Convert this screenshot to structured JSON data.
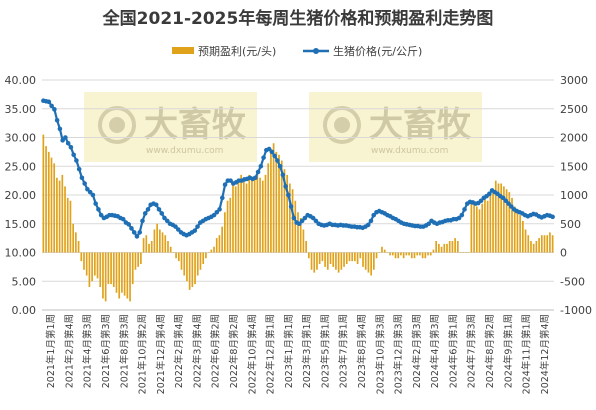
{
  "chart_data": {
    "type": "bar+line",
    "title": "全国2021-2025年每周生猪价格和预期盈利走势图",
    "legend_position": "top",
    "watermark": {
      "text": "大畜牧",
      "sub": "www.dxumu.com"
    },
    "y_left": {
      "min": 0,
      "max": 40,
      "step": 5,
      "tick_labels": [
        "0.00",
        "5.00",
        "10.00",
        "15.00",
        "20.00",
        "25.00",
        "30.00",
        "35.00",
        "40.00"
      ]
    },
    "y_right": {
      "min": -1000,
      "max": 3000,
      "step": 500,
      "tick_labels": [
        "-1000",
        "-500",
        "0",
        "500",
        "1000",
        "1500",
        "2000",
        "2500",
        "3000"
      ]
    },
    "x_tick_labels": [
      "2021年1月第1周",
      "2021年2月第4周",
      "2021年4月第3周",
      "2021年6月第3周",
      "2021年8月第3周",
      "2021年10月第2周",
      "2021年12月第4周",
      "2022年2月第4周",
      "2022年3月第4周",
      "2022年6月第2周",
      "2022年8月第2周",
      "2022年10月第4周",
      "2022年12月第1周",
      "2023年1月第1周",
      "2023年3月第1周",
      "2023年5月第1周",
      "2023年7月第1周",
      "2023年8月第4周",
      "2023年10月第3周",
      "2023年12月第3周",
      "2024年2月第3周",
      "2024年4月第3周",
      "2024年6月第1周",
      "2024年7月第3周",
      "2024年8月第2周",
      "2024年9月第1周",
      "2024年11月第1周",
      "2024年12月第4周"
    ],
    "series": [
      {
        "name": "预期盈利(元/头)",
        "type": "bar",
        "axis": "right",
        "color": "#e0a21a",
        "values": [
          2050,
          1850,
          1750,
          1650,
          1550,
          1300,
          1250,
          1350,
          1150,
          950,
          900,
          500,
          350,
          200,
          -150,
          -300,
          -400,
          -600,
          -500,
          -400,
          -450,
          -600,
          -800,
          -850,
          -550,
          -550,
          -600,
          -700,
          -800,
          -700,
          -750,
          -800,
          -850,
          -550,
          -300,
          -250,
          -200,
          250,
          300,
          150,
          200,
          400,
          500,
          400,
          350,
          300,
          200,
          100,
          0,
          -100,
          -150,
          -300,
          -400,
          -500,
          -650,
          -600,
          -550,
          -400,
          -300,
          -200,
          -100,
          0,
          50,
          100,
          250,
          300,
          450,
          700,
          900,
          950,
          1200,
          1150,
          1250,
          1350,
          1250,
          1200,
          1350,
          1300,
          1300,
          1350,
          1300,
          1250,
          1350,
          1550,
          1800,
          1900,
          1750,
          1700,
          1600,
          1450,
          1350,
          1200,
          1100,
          900,
          700,
          600,
          400,
          200,
          -100,
          -300,
          -350,
          -300,
          -200,
          -150,
          -250,
          -300,
          -200,
          -250,
          -300,
          -350,
          -300,
          -250,
          -200,
          -150,
          -150,
          -150,
          -200,
          -100,
          -250,
          -300,
          -350,
          -400,
          -300,
          -100,
          0,
          100,
          50,
          0,
          -50,
          -50,
          -100,
          -100,
          -50,
          -100,
          -50,
          -50,
          -100,
          -100,
          -50,
          -50,
          -100,
          -100,
          -50,
          -50,
          50,
          200,
          150,
          100,
          150,
          150,
          200,
          200,
          250,
          200,
          0,
          0,
          0,
          0,
          850,
          900,
          800,
          750,
          850,
          950,
          900,
          1000,
          1100,
          1250,
          1200,
          1200,
          1150,
          1100,
          1050,
          950,
          800,
          750,
          650,
          550,
          400,
          300,
          200,
          150,
          200,
          250,
          300,
          300,
          300,
          350,
          300
        ]
      },
      {
        "name": "生猪价格(元/公斤)",
        "type": "line",
        "axis": "left",
        "color": "#1f6fb5",
        "values": [
          36.4,
          36.3,
          36.2,
          35.5,
          34.9,
          33.0,
          31.5,
          29.5,
          30.0,
          29.0,
          28.3,
          27.0,
          26.0,
          24.5,
          23.0,
          22.0,
          21.0,
          20.5,
          20.0,
          18.5,
          17.5,
          16.5,
          16.0,
          16.2,
          16.5,
          16.5,
          16.4,
          16.3,
          16.0,
          15.8,
          15.2,
          14.9,
          14.2,
          13.5,
          12.8,
          13.5,
          15.5,
          16.8,
          17.5,
          18.3,
          18.5,
          18.3,
          17.5,
          16.8,
          16.0,
          15.5,
          15.0,
          14.8,
          14.5,
          14.0,
          13.5,
          13.2,
          13.0,
          13.2,
          13.5,
          13.8,
          14.5,
          15.2,
          15.5,
          15.8,
          16.0,
          16.2,
          16.5,
          17.0,
          17.5,
          19.5,
          21.8,
          22.5,
          22.5,
          22.0,
          22.2,
          22.5,
          22.5,
          22.7,
          22.8,
          23.0,
          22.8,
          23.0,
          24.0,
          25.0,
          26.5,
          27.8,
          28.0,
          27.5,
          26.8,
          26.0,
          25.0,
          23.5,
          21.5,
          20.0,
          18.0,
          16.0,
          15.2,
          15.0,
          15.5,
          16.0,
          16.5,
          16.3,
          16.0,
          15.5,
          15.0,
          14.8,
          14.7,
          14.8,
          15.0,
          14.8,
          14.8,
          14.7,
          14.8,
          14.7,
          14.7,
          14.6,
          14.5,
          14.5,
          14.4,
          14.4,
          14.3,
          14.5,
          14.8,
          15.5,
          16.5,
          17.0,
          17.2,
          17.0,
          16.8,
          16.5,
          16.3,
          16.0,
          15.8,
          15.5,
          15.2,
          15.0,
          14.9,
          14.8,
          14.7,
          14.6,
          14.6,
          14.5,
          14.5,
          14.7,
          15.0,
          15.5,
          15.2,
          15.0,
          15.2,
          15.3,
          15.5,
          15.6,
          15.6,
          15.8,
          15.8,
          16.0,
          16.5,
          17.5,
          18.5,
          18.8,
          18.7,
          18.5,
          18.6,
          19.0,
          19.5,
          19.8,
          20.2,
          20.8,
          20.5,
          20.2,
          19.8,
          19.5,
          19.0,
          18.5,
          18.0,
          17.5,
          17.2,
          17.0,
          16.8,
          16.5,
          16.3,
          16.5,
          16.7,
          16.6,
          16.3,
          16.1,
          16.3,
          16.5,
          16.4,
          16.2
        ]
      }
    ]
  }
}
